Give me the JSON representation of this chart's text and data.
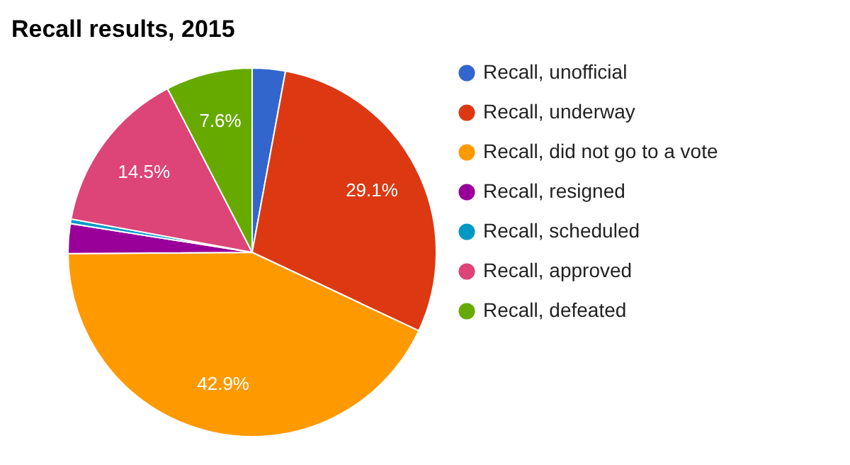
{
  "chart_data": {
    "type": "pie",
    "title": "Recall results, 2015",
    "categories": [
      "Recall, unofficial",
      "Recall, underway",
      "Recall, did not go to a vote",
      "Recall, resigned",
      "Recall, scheduled",
      "Recall, approved",
      "Recall, defeated"
    ],
    "values": [
      2.9,
      29.1,
      42.9,
      2.6,
      0.4,
      14.5,
      7.6
    ],
    "value_labels": [
      null,
      "29.1%",
      "42.9%",
      null,
      null,
      "14.5%",
      "7.6%"
    ],
    "colors": [
      "#3366cc",
      "#dc3912",
      "#ff9900",
      "#990099",
      "#0099c6",
      "#dd4477",
      "#66aa00"
    ],
    "legend": "right"
  }
}
